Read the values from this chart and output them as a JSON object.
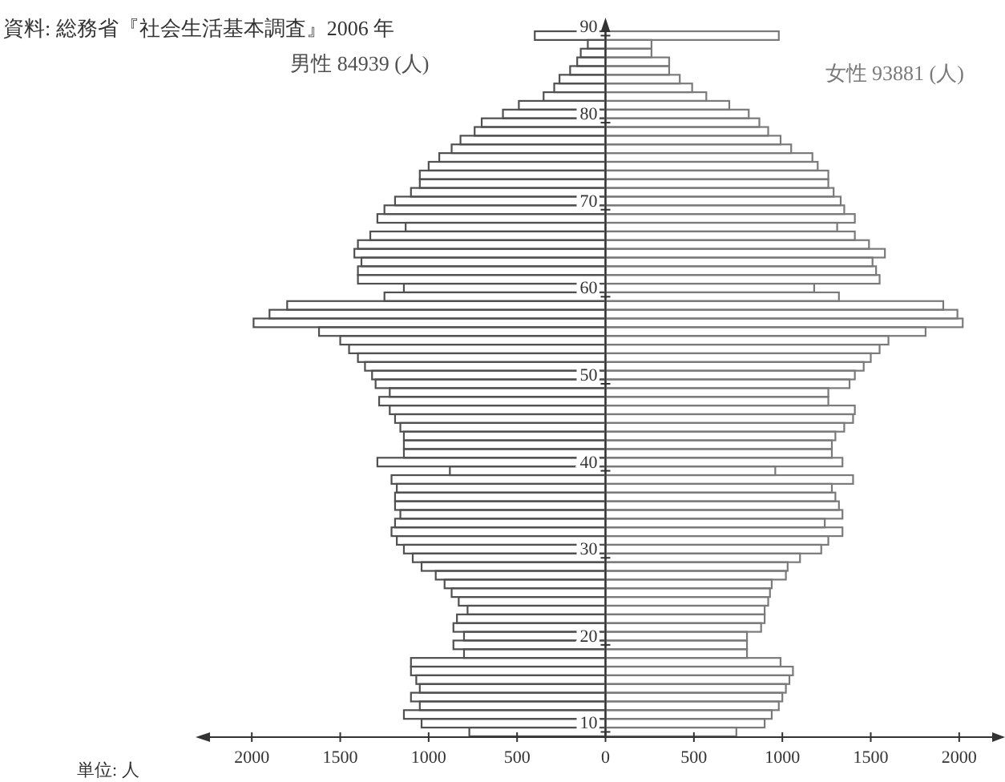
{
  "chart_data": {
    "type": "bar",
    "orientation": "horizontal",
    "annotations": [
      "資料: 総務省『社会生活基本調査』2006 年",
      "単位: 人"
    ],
    "categories": [
      "90",
      null,
      null,
      null,
      null,
      null,
      null,
      null,
      null,
      null,
      "80",
      null,
      null,
      null,
      null,
      null,
      null,
      null,
      null,
      null,
      "70",
      null,
      null,
      null,
      null,
      null,
      null,
      null,
      null,
      null,
      "60",
      null,
      null,
      null,
      null,
      null,
      null,
      null,
      null,
      null,
      "50",
      null,
      null,
      null,
      null,
      null,
      null,
      null,
      null,
      null,
      "40",
      null,
      null,
      null,
      null,
      null,
      null,
      null,
      null,
      null,
      "30",
      null,
      null,
      null,
      null,
      null,
      null,
      null,
      null,
      null,
      "20",
      null,
      null,
      null,
      null,
      null,
      null,
      null,
      null,
      null,
      "10"
    ],
    "series": [
      {
        "name": "男性 84939 (人)",
        "color": "#505050",
        "values": [
          -400,
          -100,
          -140,
          -160,
          -200,
          -260,
          -290,
          -350,
          -490,
          -580,
          -700,
          -740,
          -820,
          -870,
          -940,
          -1000,
          -1050,
          -1050,
          -1100,
          -1190,
          -1250,
          -1290,
          -1130,
          -1330,
          -1400,
          -1420,
          -1380,
          -1400,
          -1400,
          -1140,
          -1250,
          -1800,
          -1900,
          -1990,
          -1620,
          -1500,
          -1450,
          -1400,
          -1360,
          -1320,
          -1300,
          -1220,
          -1280,
          -1220,
          -1190,
          -1160,
          -1140,
          -1140,
          -1140,
          -1290,
          -880,
          -1210,
          -1180,
          -1190,
          -1190,
          -1160,
          -1190,
          -1210,
          -1180,
          -1140,
          -1090,
          -1040,
          -960,
          -910,
          -870,
          -830,
          -780,
          -840,
          -860,
          -800,
          -860,
          -800,
          -1100,
          -1100,
          -1070,
          -1050,
          -1100,
          -1050,
          -1140,
          -1040,
          -770
        ]
      },
      {
        "name": "女性 93881 (人)",
        "color": "#7a7a7a",
        "values": [
          980,
          260,
          260,
          360,
          360,
          420,
          490,
          570,
          700,
          810,
          870,
          920,
          990,
          1050,
          1170,
          1200,
          1260,
          1260,
          1290,
          1330,
          1350,
          1410,
          1310,
          1410,
          1490,
          1580,
          1510,
          1530,
          1550,
          1180,
          1320,
          1910,
          1990,
          2020,
          1810,
          1600,
          1550,
          1500,
          1460,
          1410,
          1380,
          1260,
          1260,
          1410,
          1400,
          1350,
          1300,
          1280,
          1280,
          1340,
          960,
          1400,
          1280,
          1300,
          1320,
          1340,
          1240,
          1340,
          1260,
          1220,
          1100,
          1030,
          1020,
          940,
          930,
          920,
          900,
          900,
          880,
          800,
          800,
          800,
          990,
          1060,
          1040,
          1020,
          1000,
          980,
          940,
          900,
          740
        ]
      }
    ],
    "xlim": [
      -2300,
      2250
    ],
    "xticks": [
      {
        "value": -2000,
        "label": "2000"
      },
      {
        "value": -1500,
        "label": "1500"
      },
      {
        "value": -1000,
        "label": "1000"
      },
      {
        "value": -500,
        "label": "500"
      },
      0,
      500,
      1000,
      1500,
      2000
    ]
  }
}
